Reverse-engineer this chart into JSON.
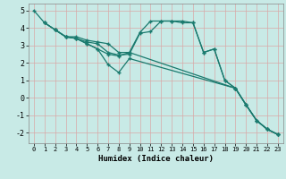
{
  "title": "",
  "xlabel": "Humidex (Indice chaleur)",
  "xlim": [
    -0.5,
    23.5
  ],
  "ylim": [
    -2.6,
    5.4
  ],
  "xticks": [
    0,
    1,
    2,
    3,
    4,
    5,
    6,
    7,
    8,
    9,
    10,
    11,
    12,
    13,
    14,
    15,
    16,
    17,
    18,
    19,
    20,
    21,
    22,
    23
  ],
  "yticks": [
    -2,
    -1,
    0,
    1,
    2,
    3,
    4,
    5
  ],
  "background_color": "#c8eae6",
  "grid_color": "#d8a8a8",
  "line_color": "#1a7a6e",
  "lines": [
    {
      "x": [
        0,
        1,
        2,
        3,
        4,
        5,
        6,
        7,
        8,
        9,
        10,
        11,
        12,
        13,
        14,
        15,
        16,
        17,
        18,
        19,
        20,
        21,
        22,
        23
      ],
      "y": [
        5.0,
        4.3,
        3.9,
        3.5,
        3.5,
        3.3,
        3.2,
        3.1,
        2.6,
        2.6,
        3.75,
        4.4,
        4.4,
        4.4,
        4.3,
        4.3,
        2.6,
        2.8,
        1.0,
        0.55,
        -0.4,
        -1.3,
        -1.8,
        -2.1
      ]
    },
    {
      "x": [
        2,
        3,
        4,
        5,
        6,
        7,
        8,
        9,
        19,
        20,
        21,
        22,
        23
      ],
      "y": [
        3.9,
        3.5,
        3.4,
        3.1,
        2.8,
        1.9,
        1.45,
        2.25,
        0.55,
        -0.4,
        -1.3,
        -1.8,
        -2.1
      ]
    },
    {
      "x": [
        1,
        2,
        3,
        4,
        5,
        6,
        7,
        8,
        9,
        19,
        20,
        21,
        22,
        23
      ],
      "y": [
        4.3,
        3.9,
        3.5,
        3.4,
        3.1,
        2.8,
        2.5,
        2.4,
        2.6,
        0.55,
        -0.4,
        -1.3,
        -1.8,
        -2.1
      ]
    },
    {
      "x": [
        1,
        2,
        3,
        4,
        5,
        6,
        7,
        8,
        9,
        10,
        11,
        12,
        13,
        14,
        15,
        16,
        17,
        18,
        19,
        20,
        21,
        22,
        23
      ],
      "y": [
        4.3,
        3.9,
        3.5,
        3.4,
        3.2,
        3.1,
        2.6,
        2.45,
        2.5,
        3.7,
        3.8,
        4.4,
        4.4,
        4.4,
        4.3,
        2.6,
        2.8,
        1.0,
        0.55,
        -0.4,
        -1.3,
        -1.8,
        -2.1
      ]
    }
  ]
}
